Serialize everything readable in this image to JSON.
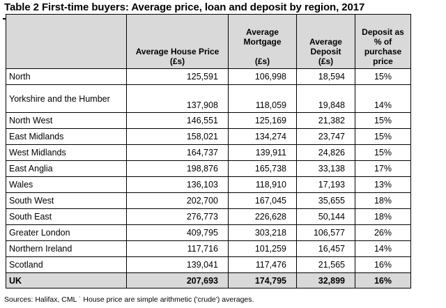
{
  "title": "Table 2 First-time buyers: Average price, loan and deposit by region, 2017",
  "table": {
    "headers": {
      "price": "Average House Price (£s)",
      "mortgage_line1": "Average Mortgage",
      "mortgage_line2": "(£s)",
      "deposit_line1": "Average Deposit",
      "deposit_line2": "(£s)",
      "pct": "Deposit as % of purchase price"
    },
    "rows": [
      {
        "region": "North",
        "price": "125,591",
        "mortgage": "106,998",
        "deposit": "18,594",
        "pct": "15%"
      },
      {
        "region": "Yorkshire and the Humber",
        "price": "137,908",
        "mortgage": "118,059",
        "deposit": "19,848",
        "pct": "14%"
      },
      {
        "region": "North West",
        "price": "146,551",
        "mortgage": "125,169",
        "deposit": "21,382",
        "pct": "15%"
      },
      {
        "region": "East Midlands",
        "price": "158,021",
        "mortgage": "134,274",
        "deposit": "23,747",
        "pct": "15%"
      },
      {
        "region": "West Midlands",
        "price": "164,737",
        "mortgage": "139,911",
        "deposit": "24,826",
        "pct": "15%"
      },
      {
        "region": "East Anglia",
        "price": "198,876",
        "mortgage": "165,738",
        "deposit": "33,138",
        "pct": "17%"
      },
      {
        "region": "Wales",
        "price": "136,103",
        "mortgage": "118,910",
        "deposit": "17,193",
        "pct": "13%"
      },
      {
        "region": "South West",
        "price": "202,700",
        "mortgage": "167,045",
        "deposit": "35,655",
        "pct": "18%"
      },
      {
        "region": "South East",
        "price": "276,773",
        "mortgage": "226,628",
        "deposit": "50,144",
        "pct": "18%"
      },
      {
        "region": "Greater London",
        "price": "409,795",
        "mortgage": "303,218",
        "deposit": "106,577",
        "pct": "26%"
      },
      {
        "region": "Northern Ireland",
        "price": "117,716",
        "mortgage": "101,259",
        "deposit": "16,457",
        "pct": "14%"
      },
      {
        "region": "Scotland",
        "price": "139,041",
        "mortgage": "117,476",
        "deposit": "21,565",
        "pct": "16%"
      }
    ],
    "total": {
      "region": "UK",
      "price": "207,693",
      "mortgage": "174,795",
      "deposit": "32,899",
      "pct": "16%"
    }
  },
  "footnote": "Sources: Halifax, CML ˙ House price are simple arithmetic ('crude') averages.",
  "colors": {
    "header_bg": "#d9d9d9",
    "total_bg": "#d9d9d9",
    "border": "#000000"
  }
}
